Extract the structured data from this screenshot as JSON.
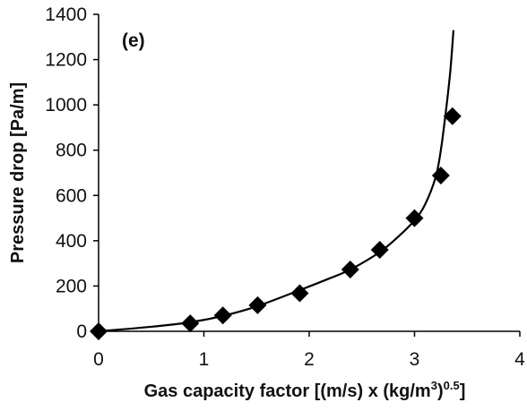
{
  "chart_data": {
    "type": "scatter",
    "panel_label": "(e)",
    "xlabel_main": "Gas capacity factor [(m/s) x (kg/m",
    "xlabel_sup1": "3",
    "xlabel_mid": ")",
    "xlabel_sup2": "0.5",
    "xlabel_end": "]",
    "ylabel": "Pressure drop [Pa/m]",
    "xlim": [
      0,
      4
    ],
    "ylim": [
      0,
      1400
    ],
    "x_ticks": [
      "0",
      "1",
      "2",
      "3",
      "4"
    ],
    "y_ticks": [
      "0",
      "200",
      "400",
      "600",
      "800",
      "1000",
      "1200",
      "1400"
    ],
    "grid": false,
    "series": [
      {
        "marker": "diamond",
        "color": "#000000",
        "points": [
          {
            "x": 0.0,
            "y": 0
          },
          {
            "x": 0.87,
            "y": 35
          },
          {
            "x": 1.18,
            "y": 70
          },
          {
            "x": 1.51,
            "y": 115
          },
          {
            "x": 1.91,
            "y": 168
          },
          {
            "x": 2.39,
            "y": 273
          },
          {
            "x": 2.67,
            "y": 360
          },
          {
            "x": 3.0,
            "y": 500
          },
          {
            "x": 3.25,
            "y": 688
          },
          {
            "x": 3.36,
            "y": 950
          }
        ]
      },
      {
        "style": "line",
        "color": "#000000",
        "points": [
          {
            "x": 0.0,
            "y": 0
          },
          {
            "x": 0.5,
            "y": 20
          },
          {
            "x": 0.87,
            "y": 40
          },
          {
            "x": 1.18,
            "y": 68
          },
          {
            "x": 1.5,
            "y": 110
          },
          {
            "x": 1.9,
            "y": 180
          },
          {
            "x": 2.2,
            "y": 235
          },
          {
            "x": 2.4,
            "y": 275
          },
          {
            "x": 2.67,
            "y": 350
          },
          {
            "x": 2.85,
            "y": 420
          },
          {
            "x": 3.0,
            "y": 490
          },
          {
            "x": 3.1,
            "y": 560
          },
          {
            "x": 3.2,
            "y": 680
          },
          {
            "x": 3.25,
            "y": 800
          },
          {
            "x": 3.3,
            "y": 980
          },
          {
            "x": 3.34,
            "y": 1150
          },
          {
            "x": 3.37,
            "y": 1330
          }
        ]
      }
    ]
  }
}
